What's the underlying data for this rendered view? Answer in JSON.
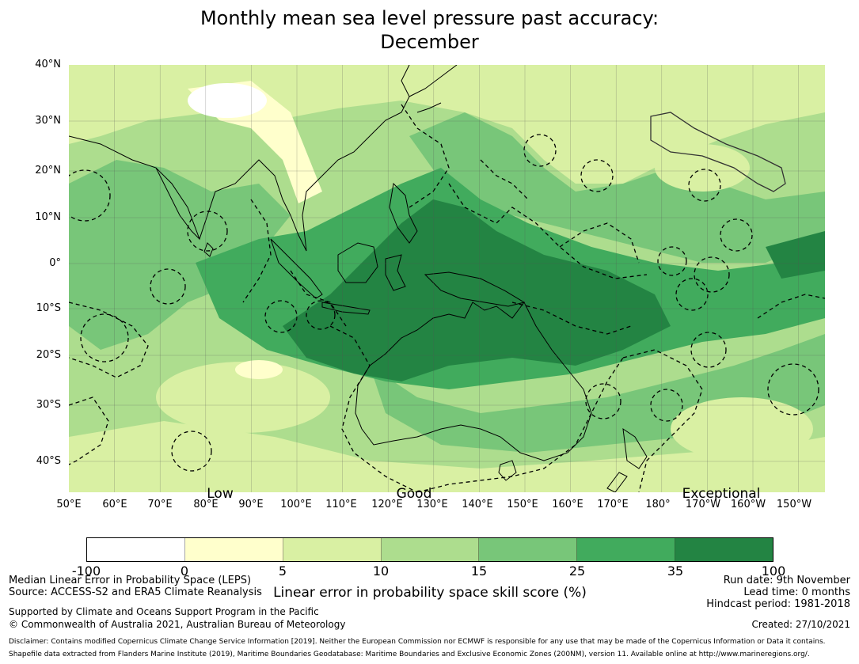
{
  "title_line1": "Monthly mean sea level pressure past accuracy:",
  "title_line2": "December",
  "latitude_labels": [
    "40°N",
    "30°N",
    "20°N",
    "10°N",
    "0°",
    "10°S",
    "20°S",
    "30°S",
    "40°S"
  ],
  "longitude_labels": [
    "50°E",
    "60°E",
    "70°E",
    "80°E",
    "90°E",
    "100°E",
    "110°E",
    "120°E",
    "130°E",
    "140°E",
    "150°E",
    "160°E",
    "170°E",
    "180°",
    "170°W",
    "160°W",
    "150°W"
  ],
  "quality_labels": [
    "Low",
    "Good",
    "Exceptional"
  ],
  "colorbar": {
    "label": "Linear error in probability space skill score (%)",
    "ticks": [
      "-100",
      "0",
      "5",
      "10",
      "15",
      "25",
      "35",
      "100"
    ],
    "colors": [
      "#ffffff",
      "#ffffcc",
      "#d9f0a3",
      "#addd8e",
      "#78c679",
      "#41ab5d",
      "#238443"
    ]
  },
  "map_colors": {
    "land_ocean_base": "#b5e08f",
    "low": "#ffffcc",
    "fair": "#d9f0a3",
    "moderate": "#addd8e",
    "good": "#78c679",
    "very_good": "#41ab5d",
    "best": "#238443"
  },
  "footer": {
    "method": "Median Linear Error in Probability Space (LEPS)",
    "source": "Source: ACCESS-S2 and ERA5 Climate Reanalysis",
    "support": "Supported by Climate and Oceans Support Program in the Pacific",
    "copyright": "© Commonwealth of Australia 2021, Australian Bureau of Meteorology",
    "run_date": "Run date: 9th November",
    "lead_time": "Lead time: 0 months",
    "hindcast": "Hindcast period: 1981-2018",
    "created": "Created: 27/10/2021",
    "disclaimer": "Disclaimer: Contains modified Copernicus Climate Change Service Information [2019]. Neither the European Commission nor ECMWF is responsible for any use that may be made of the Copernicus Information or Data it contains.",
    "shapefile": "Shapefile data extracted from Flanders Marine Institute (2019), Maritime Boundaries Geodatabase: Maritime Boundaries and Exclusive Economic Zones (200NM), version 11. Available online at http://www.marineregions.org/."
  }
}
